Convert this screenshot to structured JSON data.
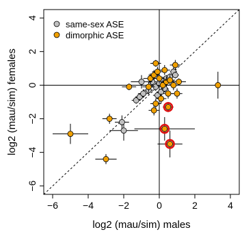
{
  "chart_data": {
    "type": "scatter",
    "xlabel": "log2 (mau/sim) males",
    "ylabel": "log2 (mau/sim) females",
    "xlim": [
      -6.5,
      4.5
    ],
    "ylim": [
      -6.5,
      4.5
    ],
    "xticks": [
      -6,
      -4,
      -2,
      0,
      2,
      4
    ],
    "yticks": [
      -6,
      -4,
      -2,
      0,
      2,
      4
    ],
    "grid": false,
    "reference_lines": [
      "x = 0",
      "y = 0",
      "y = x (dashed)"
    ],
    "legend": {
      "position": "top-left",
      "entries": [
        {
          "label": "same-sex ASE",
          "color": "#c0c0c0"
        },
        {
          "label": "dimorphic ASE",
          "color": "#f0a000"
        }
      ]
    },
    "highlight_color": "#e01010",
    "series": [
      {
        "name": "same-sex ASE",
        "color": "#c0c0c0",
        "points": [
          {
            "x": -1.3,
            "y": -0.9,
            "xerr": 0.25,
            "yerr": 0.2
          },
          {
            "x": -1.1,
            "y": -0.7,
            "xerr": 0.25,
            "yerr": 0.2
          },
          {
            "x": -0.9,
            "y": -0.5,
            "xerr": 0.3,
            "yerr": 0.25
          },
          {
            "x": -0.6,
            "y": -0.3,
            "xerr": 0.3,
            "yerr": 0.25
          },
          {
            "x": -0.4,
            "y": 0.2,
            "xerr": 0.3,
            "yerr": 0.3
          },
          {
            "x": -0.2,
            "y": -0.1,
            "xerr": 0.25,
            "yerr": 0.25
          },
          {
            "x": 0.0,
            "y": 0.1,
            "xerr": 0.2,
            "yerr": 0.25
          },
          {
            "x": 0.2,
            "y": 0.3,
            "xerr": 0.2,
            "yerr": 0.2
          },
          {
            "x": 0.4,
            "y": 0.4,
            "xerr": 0.2,
            "yerr": 0.2
          },
          {
            "x": 0.6,
            "y": 0.5,
            "xerr": 0.2,
            "yerr": 0.2
          },
          {
            "x": 0.8,
            "y": 0.8,
            "xerr": 0.2,
            "yerr": 0.25
          },
          {
            "x": 0.9,
            "y": 0.6,
            "xerr": 0.2,
            "yerr": 0.2
          },
          {
            "x": -0.1,
            "y": -0.6,
            "xerr": 0.25,
            "yerr": 0.2
          },
          {
            "x": 0.1,
            "y": -0.4,
            "xerr": 0.25,
            "yerr": 0.2
          },
          {
            "x": 0.3,
            "y": -0.2,
            "xerr": 0.2,
            "yerr": 0.2
          },
          {
            "x": -2.0,
            "y": -2.7,
            "xerr": 0.8,
            "yerr": 0.6
          },
          {
            "x": -2.1,
            "y": -2.2,
            "xerr": 0.4,
            "yerr": 0.4
          },
          {
            "x": -1.0,
            "y": 0.2,
            "xerr": 0.6,
            "yerr": 0.4
          }
        ]
      },
      {
        "name": "dimorphic ASE",
        "color": "#f0a000",
        "points": [
          {
            "x": -5.0,
            "y": -2.9,
            "xerr": 1.0,
            "yerr": 0.6
          },
          {
            "x": -3.0,
            "y": -4.4,
            "xerr": 0.6,
            "yerr": 0.3
          },
          {
            "x": -2.8,
            "y": -2.0,
            "xerr": 0.4,
            "yerr": 0.3
          },
          {
            "x": -1.7,
            "y": -0.1,
            "xerr": 0.4,
            "yerr": 0.2
          },
          {
            "x": -0.2,
            "y": 1.3,
            "xerr": 0.3,
            "yerr": 0.2
          },
          {
            "x": -0.3,
            "y": -1.5,
            "xerr": 0.3,
            "yerr": 0.3
          },
          {
            "x": -0.5,
            "y": 0.4,
            "xerr": 0.4,
            "yerr": 0.3
          },
          {
            "x": -0.6,
            "y": -0.1,
            "xerr": 0.35,
            "yerr": 0.3
          },
          {
            "x": -0.3,
            "y": 0.6,
            "xerr": 0.3,
            "yerr": 0.3
          },
          {
            "x": -0.1,
            "y": 0.8,
            "xerr": 0.3,
            "yerr": 0.3
          },
          {
            "x": 0.0,
            "y": 0.4,
            "xerr": 0.3,
            "yerr": 0.3
          },
          {
            "x": 0.1,
            "y": -0.8,
            "xerr": 0.3,
            "yerr": 0.3
          },
          {
            "x": 0.2,
            "y": 0.0,
            "xerr": 0.3,
            "yerr": 0.3
          },
          {
            "x": 0.3,
            "y": 0.9,
            "xerr": 0.3,
            "yerr": 0.3
          },
          {
            "x": 0.4,
            "y": 0.2,
            "xerr": 0.3,
            "yerr": 0.3
          },
          {
            "x": 0.5,
            "y": -0.5,
            "xerr": 0.3,
            "yerr": 0.3
          },
          {
            "x": 0.6,
            "y": 0.3,
            "xerr": 0.3,
            "yerr": 0.3
          },
          {
            "x": 0.8,
            "y": 0.0,
            "xerr": 0.3,
            "yerr": 0.3
          },
          {
            "x": 0.9,
            "y": 1.2,
            "xerr": 0.3,
            "yerr": 0.3
          },
          {
            "x": 1.0,
            "y": -0.5,
            "xerr": 0.3,
            "yerr": 0.3
          },
          {
            "x": 1.1,
            "y": 0.2,
            "xerr": 0.4,
            "yerr": 0.2
          },
          {
            "x": -0.2,
            "y": -1.1,
            "xerr": 0.3,
            "yerr": 0.3
          },
          {
            "x": 3.3,
            "y": 0.0,
            "xerr": 0.9,
            "yerr": 0.8
          },
          {
            "x": 0.5,
            "y": -1.3,
            "xerr": 0.3,
            "yerr": 0.3,
            "highlight": true
          },
          {
            "x": 0.3,
            "y": -2.6,
            "xerr": 1.7,
            "yerr": 0.7,
            "highlight": true
          },
          {
            "x": 0.6,
            "y": -3.5,
            "xerr": 0.7,
            "yerr": 0.8,
            "highlight": true
          }
        ]
      }
    ]
  }
}
